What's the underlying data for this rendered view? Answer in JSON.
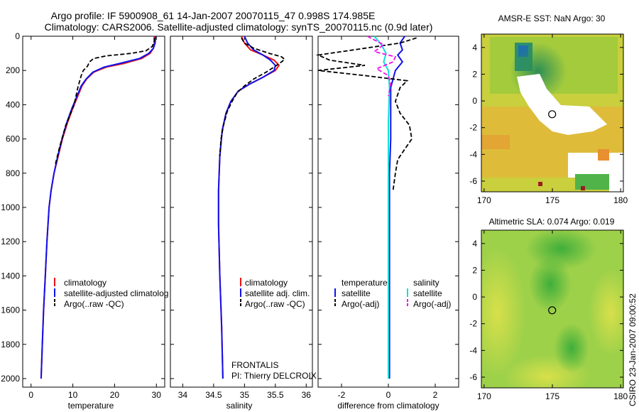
{
  "title": {
    "line1": "Argo profile: IF 5900908_61 14-Jan-2007 20070115_47 0.998S 174.985E",
    "line2": "Climatology: CARS2006. Satellite-adjusted climatology: synTS_20070115.nc (0.9d later)"
  },
  "colors": {
    "climatology": "#ee1111",
    "satellite": "#1111ee",
    "argo": "#000000",
    "sat_salinity": "#11dddd",
    "argo_salinity": "#ee11ee"
  },
  "chart_data": [
    {
      "type": "line",
      "name": "temperature-profile",
      "xlabel": "temperature",
      "xlim": [
        -2,
        32
      ],
      "ylim": [
        0,
        2050
      ],
      "y_reversed": true,
      "xticks": [
        0,
        10,
        20,
        30
      ],
      "yticks": [
        0,
        200,
        400,
        600,
        800,
        1000,
        1200,
        1400,
        1600,
        1800,
        2000
      ],
      "legend": [
        "climatology",
        "satellite-adjusted climatolog",
        "Argo(..raw -QC)"
      ],
      "series": [
        {
          "name": "climatology",
          "style": "solid",
          "color": "#ee1111",
          "points": [
            [
              29.5,
              0
            ],
            [
              29.5,
              40
            ],
            [
              29.3,
              70
            ],
            [
              28.5,
              100
            ],
            [
              26.5,
              130
            ],
            [
              22,
              160
            ],
            [
              18,
              180
            ],
            [
              15,
              210
            ],
            [
              13.3,
              250
            ],
            [
              12.2,
              290
            ],
            [
              11.2,
              350
            ],
            [
              10,
              420
            ],
            [
              8.8,
              500
            ],
            [
              7.5,
              600
            ],
            [
              6.5,
              700
            ],
            [
              5.5,
              800
            ],
            [
              4.8,
              900
            ],
            [
              4.3,
              1000
            ],
            [
              3.8,
              1200
            ],
            [
              3.4,
              1400
            ],
            [
              3.0,
              1600
            ],
            [
              2.7,
              1800
            ],
            [
              2.4,
              2000
            ]
          ]
        },
        {
          "name": "satellite",
          "style": "solid",
          "color": "#1111ee",
          "points": [
            [
              29.8,
              0
            ],
            [
              29.7,
              40
            ],
            [
              29.3,
              70
            ],
            [
              28.2,
              100
            ],
            [
              26,
              130
            ],
            [
              21,
              160
            ],
            [
              17.5,
              180
            ],
            [
              14.8,
              210
            ],
            [
              13.2,
              250
            ],
            [
              12,
              290
            ],
            [
              11,
              350
            ],
            [
              9.8,
              420
            ],
            [
              8.6,
              500
            ],
            [
              7.4,
              600
            ],
            [
              6.4,
              700
            ],
            [
              5.5,
              800
            ],
            [
              4.8,
              900
            ],
            [
              4.3,
              1000
            ],
            [
              3.8,
              1200
            ],
            [
              3.4,
              1400
            ],
            [
              3.0,
              1600
            ],
            [
              2.7,
              1800
            ],
            [
              2.4,
              2000
            ]
          ]
        },
        {
          "name": "Argo(..raw -QC)",
          "style": "dashed",
          "color": "#000000",
          "points": [
            [
              29.5,
              10
            ],
            [
              29.5,
              30
            ],
            [
              29,
              60
            ],
            [
              27.5,
              85
            ],
            [
              24,
              100
            ],
            [
              18,
              115
            ],
            [
              15,
              130
            ],
            [
              14,
              150
            ],
            [
              13.5,
              175
            ],
            [
              12.5,
              200
            ],
            [
              12,
              230
            ],
            [
              11.2,
              300
            ],
            [
              10.3,
              400
            ],
            [
              9,
              480
            ],
            [
              8.3,
              520
            ],
            [
              7.6,
              580
            ],
            [
              6.8,
              650
            ],
            [
              5.8,
              750
            ]
          ]
        }
      ]
    },
    {
      "type": "line",
      "name": "salinity-profile",
      "xlabel": "salinity",
      "xlim": [
        33.8,
        36.1
      ],
      "ylim": [
        0,
        2050
      ],
      "y_reversed": true,
      "xticks": [
        34,
        34.5,
        35,
        35.5,
        36
      ],
      "legend": [
        "climatology",
        "satellite adj. clim.",
        "Argo(..raw -QC)"
      ],
      "annotations": [
        "FRONTALIS",
        "PI: Thierry DELCROIX"
      ],
      "series": [
        {
          "name": "climatology",
          "style": "solid",
          "color": "#ee1111",
          "points": [
            [
              34.95,
              0
            ],
            [
              35.0,
              40
            ],
            [
              35.1,
              80
            ],
            [
              35.3,
              110
            ],
            [
              35.48,
              140
            ],
            [
              35.56,
              170
            ],
            [
              35.5,
              200
            ],
            [
              35.3,
              240
            ],
            [
              35.08,
              280
            ],
            [
              34.9,
              320
            ],
            [
              34.78,
              380
            ],
            [
              34.7,
              450
            ],
            [
              34.64,
              550
            ],
            [
              34.6,
              700
            ],
            [
              34.58,
              900
            ],
            [
              34.58,
              1100
            ],
            [
              34.6,
              1400
            ],
            [
              34.63,
              1700
            ],
            [
              34.65,
              2000
            ]
          ]
        },
        {
          "name": "satellite adj. clim.",
          "style": "solid",
          "color": "#1111ee",
          "points": [
            [
              35.0,
              0
            ],
            [
              35.05,
              40
            ],
            [
              35.15,
              80
            ],
            [
              35.3,
              110
            ],
            [
              35.42,
              140
            ],
            [
              35.5,
              170
            ],
            [
              35.48,
              200
            ],
            [
              35.3,
              240
            ],
            [
              35.08,
              280
            ],
            [
              34.9,
              320
            ],
            [
              34.78,
              380
            ],
            [
              34.7,
              450
            ],
            [
              34.64,
              550
            ],
            [
              34.6,
              700
            ],
            [
              34.58,
              900
            ],
            [
              34.58,
              1100
            ],
            [
              34.6,
              1400
            ],
            [
              34.63,
              1700
            ],
            [
              34.65,
              2000
            ]
          ]
        },
        {
          "name": "Argo(..raw -QC)",
          "style": "dashed",
          "color": "#000000",
          "points": [
            [
              34.95,
              10
            ],
            [
              35.0,
              40
            ],
            [
              35.15,
              70
            ],
            [
              35.4,
              100
            ],
            [
              35.6,
              120
            ],
            [
              35.65,
              135
            ],
            [
              35.6,
              150
            ],
            [
              35.5,
              175
            ],
            [
              35.35,
              210
            ],
            [
              35.15,
              250
            ],
            [
              35.0,
              290
            ],
            [
              34.88,
              330
            ],
            [
              34.8,
              380
            ],
            [
              34.72,
              440
            ],
            [
              34.66,
              520
            ],
            [
              34.62,
              600
            ],
            [
              34.6,
              700
            ]
          ]
        }
      ]
    },
    {
      "type": "line",
      "name": "difference-profile",
      "xlabel": "difference from climatology",
      "xlim": [
        -3,
        3
      ],
      "ylim": [
        0,
        2050
      ],
      "y_reversed": true,
      "xticks": [
        -2,
        0,
        2
      ],
      "legend_groups": [
        {
          "header": "temperature",
          "items": [
            "satellite",
            "Argo(-adj)"
          ]
        },
        {
          "header": "salinity",
          "items": [
            "satellite",
            "Argo(-adj)"
          ]
        }
      ],
      "series": [
        {
          "name": "temperature satellite",
          "style": "solid",
          "color": "#1111ee",
          "points": [
            [
              0.7,
              0
            ],
            [
              0.5,
              40
            ],
            [
              0.6,
              80
            ],
            [
              0.4,
              110
            ],
            [
              0.6,
              150
            ],
            [
              0.3,
              200
            ],
            [
              0.2,
              250
            ],
            [
              0.1,
              300
            ],
            [
              0.1,
              400
            ],
            [
              0.1,
              600
            ],
            [
              0.05,
              800
            ],
            [
              0.05,
              1000
            ],
            [
              0.05,
              1500
            ],
            [
              0.05,
              2000
            ]
          ]
        },
        {
          "name": "temperature Argo(-adj)",
          "style": "dashed",
          "color": "#000000",
          "points": [
            [
              1.2,
              10
            ],
            [
              0.5,
              40
            ],
            [
              -1.5,
              80
            ],
            [
              -3,
              110
            ],
            [
              -2.5,
              140
            ],
            [
              -1,
              170
            ],
            [
              -3,
              200
            ],
            [
              -1,
              230
            ],
            [
              0.8,
              260
            ],
            [
              0.5,
              300
            ],
            [
              0.3,
              380
            ],
            [
              0.5,
              450
            ],
            [
              0.9,
              520
            ],
            [
              1.0,
              600
            ],
            [
              0.7,
              660
            ],
            [
              0.4,
              720
            ],
            [
              0.3,
              800
            ],
            [
              0.2,
              900
            ]
          ]
        },
        {
          "name": "salinity satellite",
          "style": "solid",
          "color": "#11dddd",
          "points": [
            [
              -0.6,
              0
            ],
            [
              -0.3,
              50
            ],
            [
              -0.1,
              100
            ],
            [
              -0.2,
              150
            ],
            [
              0.0,
              200
            ],
            [
              0.05,
              300
            ],
            [
              0.0,
              500
            ],
            [
              0.0,
              800
            ],
            [
              0.0,
              1200
            ],
            [
              0.0,
              2000
            ]
          ]
        },
        {
          "name": "salinity Argo(-adj)",
          "style": "dashed",
          "color": "#ee11ee",
          "points": [
            [
              -0.9,
              0
            ],
            [
              -0.2,
              50
            ],
            [
              -0.6,
              90
            ],
            [
              0.3,
              120
            ],
            [
              0.2,
              150
            ],
            [
              -0.5,
              190
            ],
            [
              0.0,
              230
            ],
            [
              0.1,
              280
            ],
            [
              0.0,
              350
            ]
          ]
        }
      ]
    },
    {
      "type": "heatmap",
      "name": "sst-map",
      "title": "AMSR-E SST: NaN Argo: 30",
      "xlim": [
        169.8,
        180.2
      ],
      "ylim": [
        -6.8,
        5.0
      ],
      "xticks": [
        170,
        175,
        180
      ],
      "yticks": [
        -6,
        -4,
        -2,
        0,
        2,
        4
      ],
      "marker": [
        174.985,
        -0.998
      ]
    },
    {
      "type": "heatmap",
      "name": "sla-map",
      "title": "Altimetric SLA: 0.074 Argo: 0.019",
      "xlim": [
        169.8,
        180.2
      ],
      "ylim": [
        -6.8,
        5.0
      ],
      "xticks": [
        170,
        175,
        180
      ],
      "yticks": [
        -6,
        -4,
        -2,
        0,
        2,
        4
      ],
      "marker": [
        174.985,
        -0.998
      ]
    }
  ],
  "stamp": "CSIRO 23-Jan-2007 09:00:52"
}
